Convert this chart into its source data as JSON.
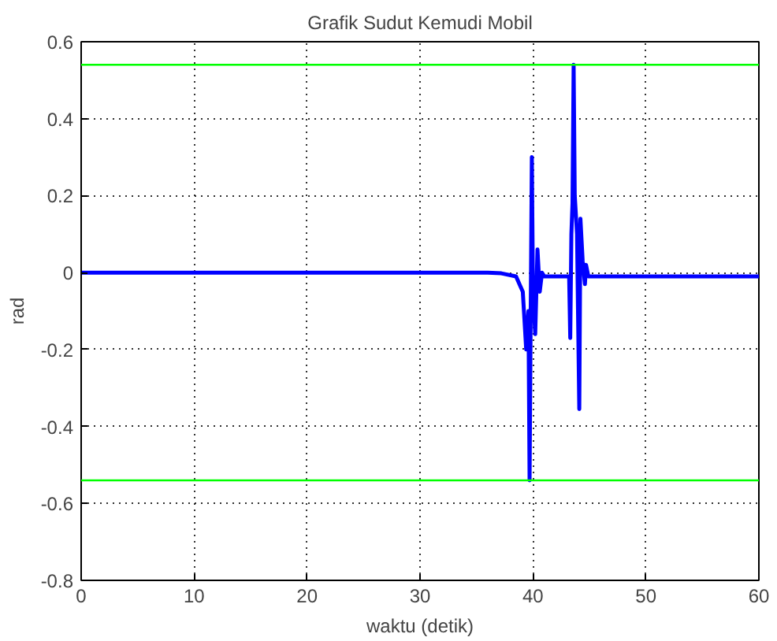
{
  "chart_data": {
    "type": "line",
    "title": "Grafik Sudut Kemudi Mobil",
    "xlabel": "waktu (detik)",
    "ylabel": "rad",
    "x": [
      0,
      10,
      20,
      30,
      36,
      37.2,
      38.5,
      39.1,
      39.4,
      39.6,
      39.7,
      39.8,
      39.9,
      40.0,
      40.2,
      40.4,
      40.6,
      40.8,
      41.0,
      41.5,
      43.2,
      43.3,
      43.4,
      43.5,
      43.6,
      43.7,
      43.9,
      44.1,
      44.2,
      44.4,
      44.6,
      44.7,
      44.9,
      45.2,
      46,
      50,
      55,
      60
    ],
    "series": [
      {
        "color": "#0000ff",
        "values": [
          0,
          0,
          0,
          0,
          0,
          -0.002,
          -0.01,
          -0.05,
          -0.2,
          -0.1,
          -0.54,
          -0.1,
          0.3,
          -0.05,
          -0.16,
          0.06,
          -0.05,
          0.0,
          -0.01,
          -0.01,
          -0.01,
          -0.17,
          0.1,
          0.18,
          0.54,
          0.2,
          0.1,
          -0.355,
          0.14,
          0.03,
          -0.03,
          0.02,
          -0.01,
          -0.01,
          -0.01,
          -0.01,
          -0.01,
          -0.01
        ]
      }
    ],
    "xlim": [
      0,
      60
    ],
    "ylim": [
      -0.8,
      0.6
    ],
    "xticks": [
      0,
      10,
      20,
      30,
      40,
      50,
      60
    ],
    "yticks": [
      -0.8,
      -0.6,
      -0.4,
      -0.2,
      0,
      0.2,
      0.4,
      0.6
    ],
    "grid": true,
    "line_style": "solid",
    "ref_lines": [
      {
        "axis": "y",
        "value": 0.54,
        "color": "#00ff00"
      },
      {
        "axis": "y",
        "value": -0.54,
        "color": "#00ff00"
      }
    ]
  }
}
